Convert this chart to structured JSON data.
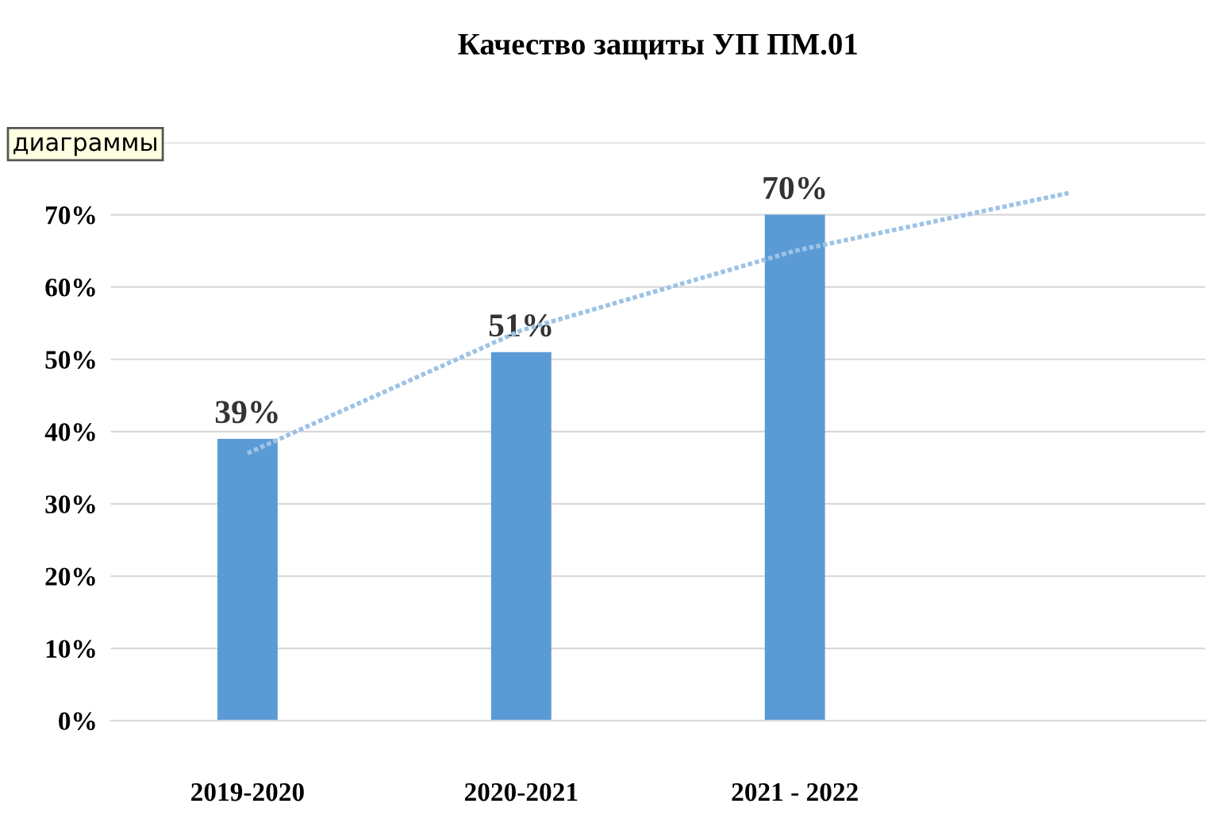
{
  "chart_data": {
    "type": "bar",
    "title": "Качество защиты УП ПМ.01",
    "categories": [
      "2019-2020",
      "2020-2021",
      "2021 - 2022",
      null
    ],
    "series": [
      {
        "color": "#5b9bd5",
        "values": [
          39,
          51,
          70,
          null
        ],
        "value_labels": [
          "39%",
          "51%",
          "70%",
          null
        ]
      },
      {
        "type": "line",
        "color": "#9dc3e6",
        "values": [
          37,
          54,
          65,
          73
        ],
        "line_style": "dotted"
      }
    ],
    "ylim": [
      0,
      80
    ],
    "yticks": [
      {
        "value": 0,
        "label": "0%"
      },
      {
        "value": 10,
        "label": "10%"
      },
      {
        "value": 20,
        "label": "20%"
      },
      {
        "value": 30,
        "label": "30%"
      },
      {
        "value": 40,
        "label": "40%"
      },
      {
        "value": 50,
        "label": "50%"
      },
      {
        "value": 60,
        "label": "60%"
      },
      {
        "value": 70,
        "label": "70%"
      },
      {
        "value": 80,
        "label": null
      }
    ],
    "grid": "y",
    "annotations": [
      "диаграммы"
    ]
  }
}
